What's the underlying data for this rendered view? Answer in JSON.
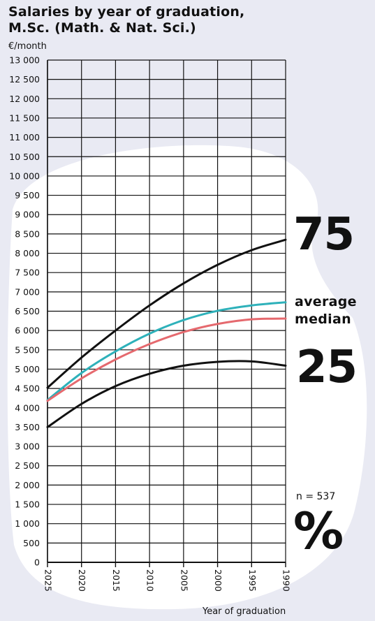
{
  "title_line1": "Salaries by year of graduation,",
  "title_line2": "M.Sc. (Math. & Nat. Sci.)",
  "n_label": "n = 537",
  "percent_sign": "%",
  "colors": {
    "background": "#e9eaf3",
    "blob": "#ffffff",
    "grid": "#111111",
    "p75": "#111111",
    "p25": "#111111",
    "average": "#2eb1ba",
    "median": "#e5696e"
  },
  "chart_data": {
    "type": "line",
    "xlabel": "Year of graduation",
    "ylabel": "€/month",
    "x_reversed": true,
    "xlim": [
      2025,
      1990
    ],
    "ylim": [
      0,
      13000
    ],
    "x_ticks": [
      2025,
      2020,
      2015,
      2010,
      2005,
      2000,
      1995,
      1990
    ],
    "x_tick_labels": [
      "2025",
      "2020",
      "2015",
      "2010",
      "2005",
      "2000",
      "1995",
      "1990"
    ],
    "y_ticks": [
      0,
      500,
      1000,
      1500,
      2000,
      2500,
      3000,
      3500,
      4000,
      4500,
      5000,
      5500,
      6000,
      6500,
      7000,
      7500,
      8000,
      8500,
      9000,
      9500,
      10000,
      10500,
      11000,
      11500,
      12000,
      12500,
      13000
    ],
    "y_tick_labels": [
      "0",
      "500",
      "1 000",
      "1 500",
      "2 000",
      "2 500",
      "3 000",
      "3 500",
      "4 000",
      "4 500",
      "5 000",
      "5 500",
      "6 000",
      "6 500",
      "7 000",
      "7 500",
      "8 000",
      "8 500",
      "9 000",
      "9 500",
      "10 000",
      "10 500",
      "11 000",
      "11 500",
      "12 000",
      "12 500",
      "13 000"
    ],
    "grid": true,
    "legend": "right, labels next to line ends",
    "series": [
      {
        "name": "75",
        "color": "#111111",
        "x": [
          2025,
          2020,
          2015,
          2010,
          2005,
          2000,
          1995,
          1990
        ],
        "values": [
          4520,
          5300,
          6000,
          6650,
          7220,
          7700,
          8080,
          8350
        ]
      },
      {
        "name": "average",
        "color": "#2eb1ba",
        "x": [
          2025,
          2020,
          2015,
          2010,
          2005,
          2000,
          1995,
          1990
        ],
        "values": [
          4200,
          4900,
          5460,
          5920,
          6270,
          6510,
          6650,
          6730
        ]
      },
      {
        "name": "median",
        "color": "#e5696e",
        "x": [
          2025,
          2020,
          2015,
          2010,
          2005,
          2000,
          1995,
          1990
        ],
        "values": [
          4180,
          4760,
          5250,
          5650,
          5960,
          6170,
          6290,
          6310
        ]
      },
      {
        "name": "25",
        "color": "#111111",
        "x": [
          2025,
          2020,
          2015,
          2010,
          2005,
          2000,
          1995,
          1990
        ],
        "values": [
          3500,
          4100,
          4560,
          4880,
          5090,
          5190,
          5200,
          5090
        ]
      }
    ]
  }
}
